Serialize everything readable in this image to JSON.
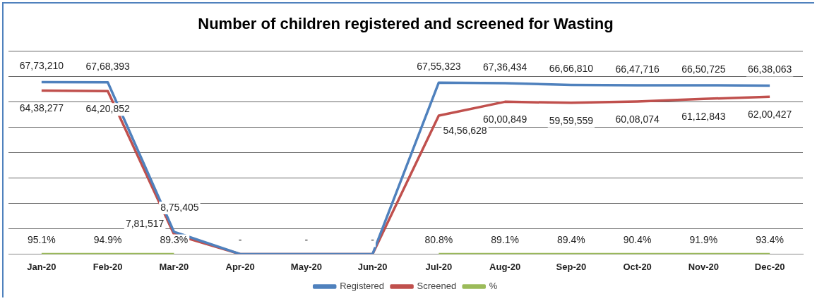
{
  "chart_data": {
    "type": "line",
    "title": "Number of children registered and screened for Wasting",
    "categories": [
      "Jan-20",
      "Feb-20",
      "Mar-20",
      "Apr-20",
      "May-20",
      "Jun-20",
      "Jul-20",
      "Aug-20",
      "Sep-20",
      "Oct-20",
      "Nov-20",
      "Dec-20"
    ],
    "series": [
      {
        "name": "Registered",
        "color": "#4f81bd",
        "values": [
          6773210,
          6768393,
          875405,
          0,
          0,
          0,
          6755323,
          6736434,
          6666810,
          6647716,
          6650725,
          6638063
        ],
        "value_labels": [
          "67,73,210",
          "67,68,393",
          "8,75,405",
          null,
          null,
          null,
          "67,55,323",
          "67,36,434",
          "66,66,810",
          "66,47,716",
          "66,50,725",
          "66,38,063"
        ]
      },
      {
        "name": "Screened",
        "color": "#c0504d",
        "values": [
          6438277,
          6420852,
          781517,
          0,
          0,
          0,
          5456628,
          6000849,
          5959559,
          6008074,
          6112843,
          6200427
        ],
        "value_labels": [
          "64,38,277",
          "64,20,852",
          "7,81,517",
          null,
          null,
          null,
          "54,56,628",
          "60,00,849",
          "59,59,559",
          "60,08,074",
          "61,12,843",
          "62,00,427"
        ]
      },
      {
        "name": "%",
        "color": "#9bbb59",
        "values": [
          95.1,
          94.9,
          89.3,
          null,
          null,
          null,
          80.8,
          89.1,
          89.4,
          90.4,
          91.9,
          93.4
        ],
        "value_labels": [
          "95.1%",
          "94.9%",
          "89.3%",
          "-",
          "-",
          "-",
          "80.8%",
          "89.1%",
          "89.4%",
          "90.4%",
          "91.9%",
          "93.4%"
        ]
      }
    ],
    "ylim": [
      0,
      8000000
    ],
    "yticks": [
      {
        "value": 0,
        "label": null
      },
      {
        "value": 1000000,
        "label": null
      },
      {
        "value": 2000000,
        "label": null
      },
      {
        "value": 3000000,
        "label": null
      },
      {
        "value": 4000000,
        "label": null
      },
      {
        "value": 5000000,
        "label": null
      },
      {
        "value": 6000000,
        "label": null
      },
      {
        "value": 7000000,
        "label": null
      },
      {
        "value": 8000000,
        "label": null
      }
    ],
    "tick_labels": "x",
    "grid": "y",
    "legend": "bottom",
    "marker": "none",
    "line_style": "solid"
  }
}
